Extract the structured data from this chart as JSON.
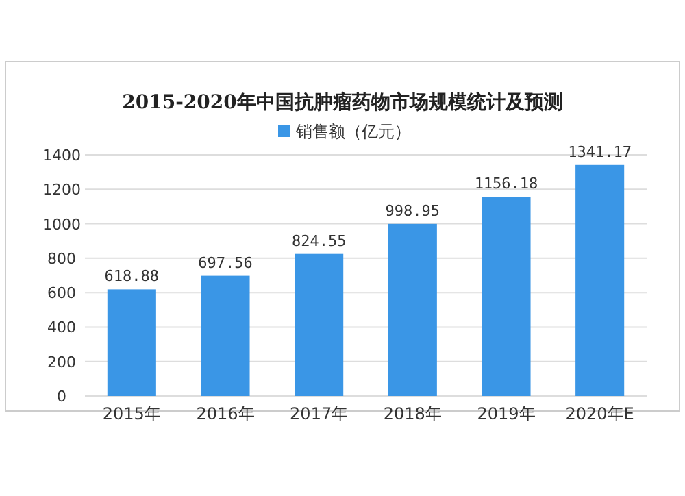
{
  "chart_data": {
    "type": "bar",
    "title": "2015-2020年中国抗肿瘤药物市场规模统计及预测",
    "categories": [
      "2015年",
      "2016年",
      "2017年",
      "2018年",
      "2019年",
      "2020年E"
    ],
    "series": [
      {
        "name": "销售额（亿元）",
        "color": "#3a96e6",
        "values": [
          618.88,
          697.56,
          824.55,
          998.95,
          1156.18,
          1341.17
        ]
      }
    ],
    "ylim": [
      0,
      1400
    ],
    "yticks": [
      0,
      200,
      400,
      600,
      800,
      1000,
      1200,
      1400
    ],
    "grid": "y",
    "legend": "top",
    "data_labels": true
  }
}
